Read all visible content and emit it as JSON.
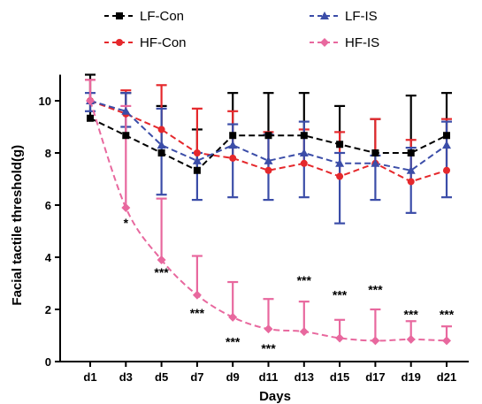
{
  "chart_data": {
    "type": "line",
    "xlabel": "Days",
    "ylabel": "Facial tactile threshold(g)",
    "categories": [
      "d1",
      "d3",
      "d5",
      "d7",
      "d9",
      "d11",
      "d13",
      "d15",
      "d17",
      "d19",
      "d21"
    ],
    "ylim": [
      0,
      11
    ],
    "yticks": [
      0,
      2,
      4,
      6,
      8,
      10
    ],
    "grid": false,
    "legend_position": "top",
    "error_bars": "upper-only (positive SD)",
    "series": [
      {
        "name": "LF-Con",
        "color": "#000000",
        "marker": "square",
        "values": [
          9.33,
          8.67,
          8.0,
          7.33,
          8.67,
          8.67,
          8.67,
          8.33,
          8.0,
          8.0,
          8.67
        ],
        "error_upper": [
          11.0,
          10.3,
          9.8,
          8.9,
          10.3,
          10.3,
          10.3,
          9.8,
          9.3,
          10.2,
          10.3
        ]
      },
      {
        "name": "HF-Con",
        "color": "#e5282c",
        "marker": "circle",
        "values": [
          10.0,
          9.5,
          8.9,
          8.0,
          7.8,
          7.33,
          7.6,
          7.1,
          7.6,
          6.9,
          7.33
        ],
        "error_upper": [
          10.8,
          10.4,
          10.6,
          9.7,
          9.6,
          8.8,
          8.9,
          8.8,
          9.3,
          8.5,
          9.3
        ]
      },
      {
        "name": "LF-IS",
        "color": "#3b4da8",
        "marker": "triangle",
        "values": [
          10.0,
          9.6,
          8.3,
          7.7,
          8.3,
          7.7,
          8.0,
          7.6,
          7.6,
          7.33,
          8.3
        ],
        "error_upper": [
          10.3,
          10.3,
          9.7,
          8.0,
          9.1,
          8.7,
          9.2,
          8.0,
          7.9,
          8.2,
          9.2
        ],
        "error_lower": [
          9.6,
          9.0,
          6.4,
          6.2,
          6.3,
          6.2,
          6.3,
          5.3,
          6.2,
          5.7,
          6.3
        ]
      },
      {
        "name": "HF-IS",
        "color": "#e8689e",
        "marker": "diamond",
        "values": [
          10.0,
          5.9,
          3.9,
          2.55,
          1.7,
          1.25,
          1.15,
          0.9,
          0.8,
          0.85,
          0.8
        ],
        "error_upper": [
          10.8,
          9.8,
          6.25,
          4.05,
          3.05,
          2.4,
          2.3,
          1.6,
          2.0,
          1.55,
          1.35
        ]
      }
    ],
    "significance_labels": [
      {
        "category": "d3",
        "text": "*",
        "y": 5.35
      },
      {
        "category": "d5",
        "text": "***",
        "y": 3.45
      },
      {
        "category": "d7",
        "text": "***",
        "y": 1.9
      },
      {
        "category": "d9",
        "text": "***",
        "y": 0.8
      },
      {
        "category": "d11",
        "text": "***",
        "y": 0.55
      },
      {
        "category": "d13",
        "text": "***",
        "y": 3.15
      },
      {
        "category": "d15",
        "text": "***",
        "y": 2.6
      },
      {
        "category": "d17",
        "text": "***",
        "y": 2.8
      },
      {
        "category": "d19",
        "text": "***",
        "y": 1.85
      },
      {
        "category": "d21",
        "text": "***",
        "y": 1.85
      }
    ]
  }
}
